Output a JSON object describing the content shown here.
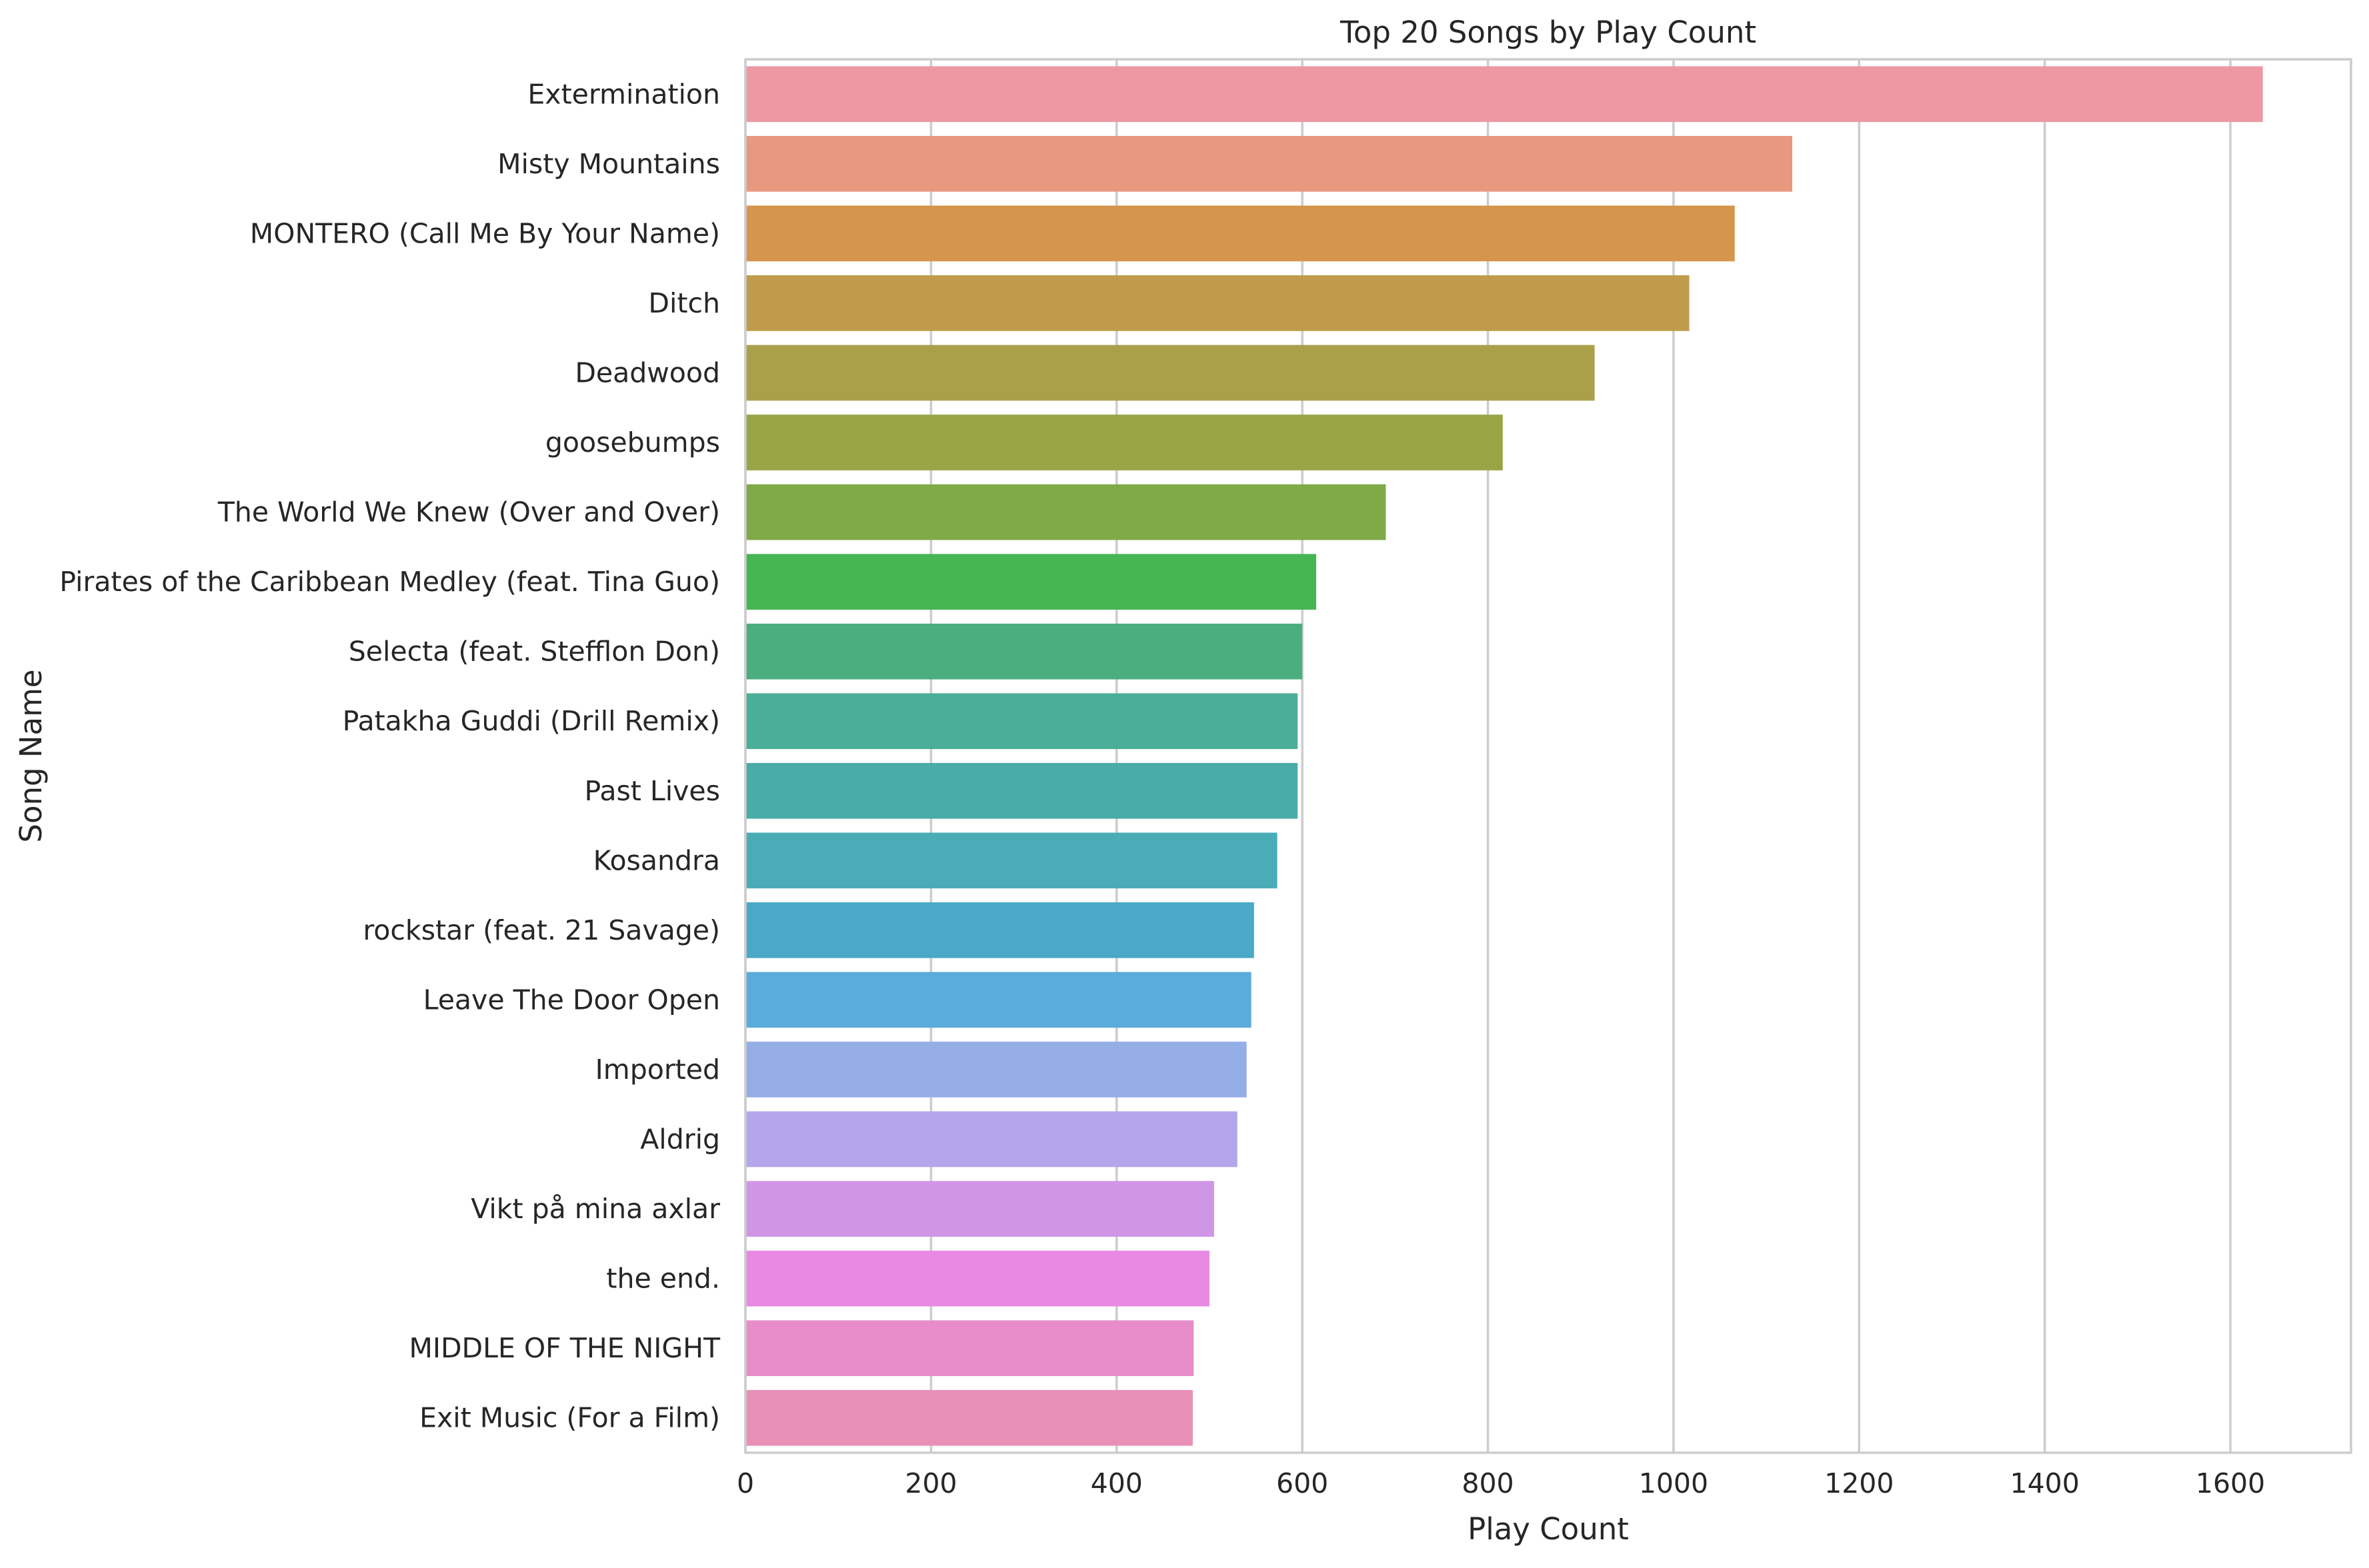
{
  "chart_data": {
    "type": "bar",
    "orientation": "horizontal",
    "title": "Top 20 Songs by Play Count",
    "xlabel": "Play Count",
    "ylabel": "Song Name",
    "xlim": [
      0,
      1730
    ],
    "xticks": [
      0,
      200,
      400,
      600,
      800,
      1000,
      1200,
      1400,
      1600
    ],
    "grid": "vertical",
    "legend": "none",
    "categories": [
      "Extermination",
      "Misty Mountains",
      "MONTERO (Call Me By Your Name)",
      "Ditch",
      "Deadwood",
      "goosebumps",
      "The World We Knew (Over and Over)",
      "Pirates of the Caribbean Medley (feat. Tina Guo)",
      "Selecta (feat. Stefflon Don)",
      "Patakha Guddi (Drill Remix)",
      "Past Lives",
      "Kosandra",
      "rockstar (feat. 21 Savage)",
      "Leave The Door Open",
      "Imported",
      "Aldrig",
      "Vikt på mina axlar",
      "the end.",
      "MIDDLE OF THE NIGHT",
      "Exit Music (For a Film)"
    ],
    "values": [
      1635,
      1128,
      1066,
      1017,
      915,
      816,
      690,
      615,
      600,
      595,
      595,
      573,
      548,
      545,
      540,
      530,
      505,
      500,
      483,
      482
    ],
    "colors": [
      "#ed98a3",
      "#e8987f",
      "#d6954d",
      "#bf9b4b",
      "#aaa04a",
      "#98a545",
      "#80aa47",
      "#46b653",
      "#4aae7f",
      "#4aae98",
      "#4aaca9",
      "#4aacb6",
      "#4aa9c7",
      "#59acdc",
      "#96aee7",
      "#b3a6ec",
      "#d096e6",
      "#e88ae4",
      "#e88dc9",
      "#e890b8"
    ]
  }
}
